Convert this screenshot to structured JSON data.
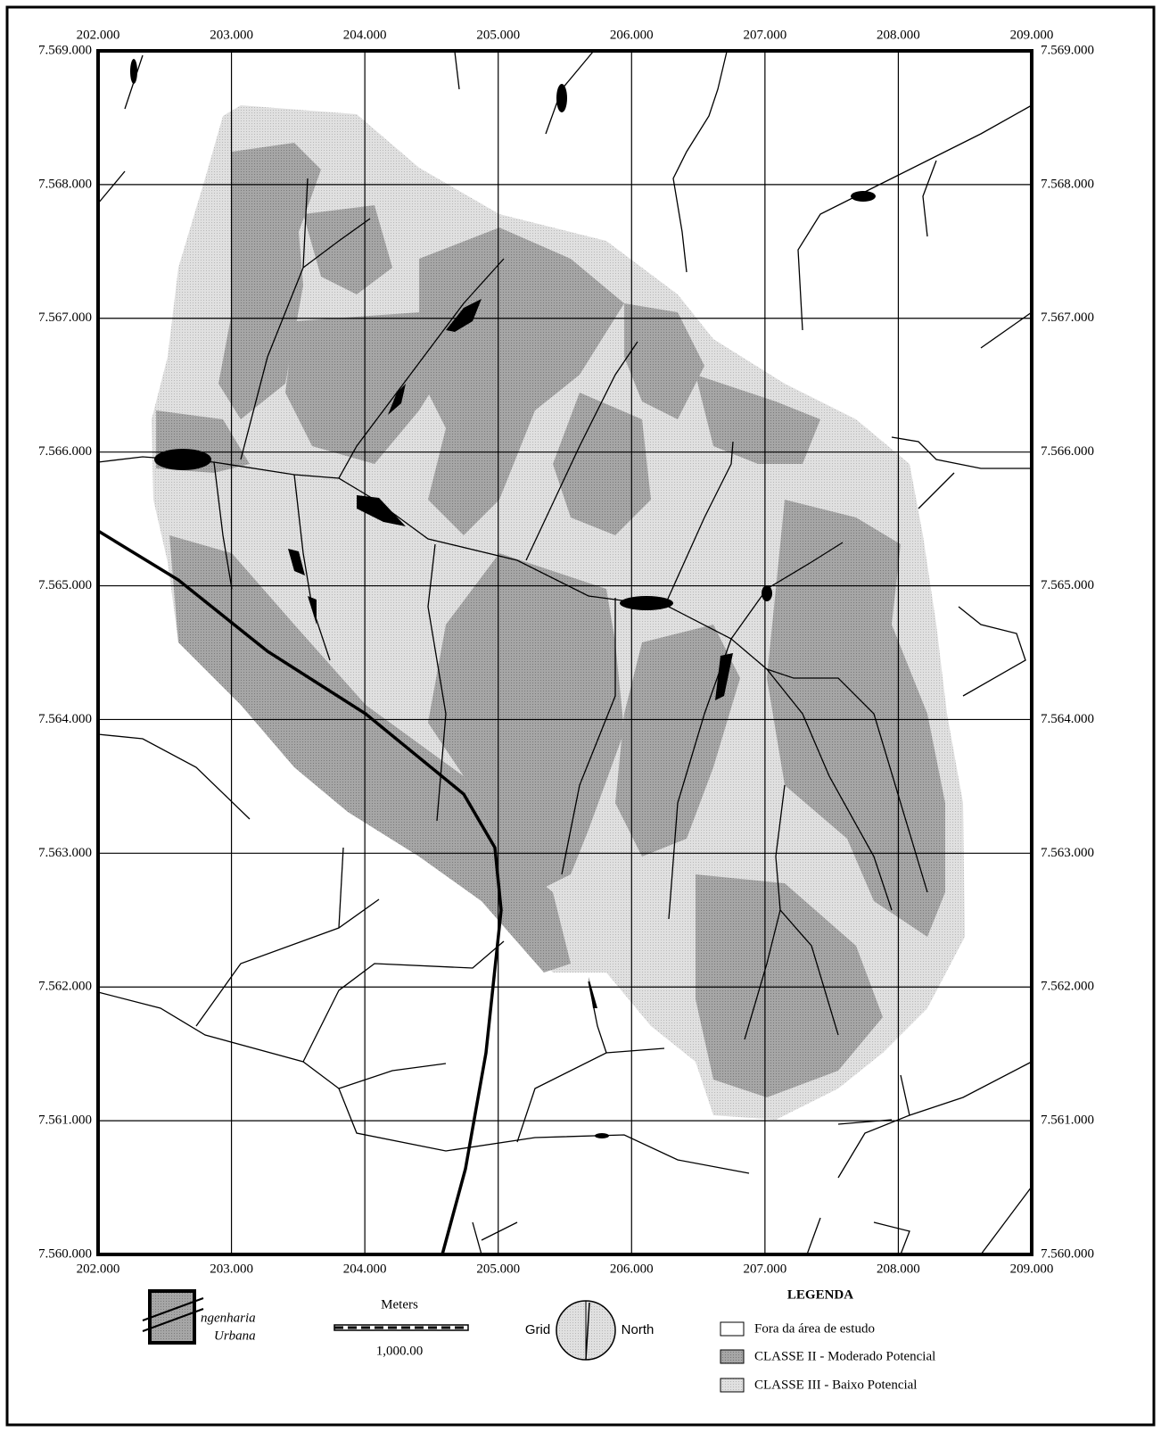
{
  "map": {
    "xlim": [
      202000,
      209000
    ],
    "ylim": [
      7560000,
      7569000
    ],
    "xticks": [
      {
        "value": 202000,
        "label": "202.000"
      },
      {
        "value": 203000,
        "label": "203.000"
      },
      {
        "value": 204000,
        "label": "204.000"
      },
      {
        "value": 205000,
        "label": "205.000"
      },
      {
        "value": 206000,
        "label": "206.000"
      },
      {
        "value": 207000,
        "label": "207.000"
      },
      {
        "value": 208000,
        "label": "208.000"
      },
      {
        "value": 209000,
        "label": "209.000"
      }
    ],
    "yticks": [
      {
        "value": 7560000,
        "label": "7.560.000"
      },
      {
        "value": 7561000,
        "label": "7.561.000"
      },
      {
        "value": 7562000,
        "label": "7.562.000"
      },
      {
        "value": 7563000,
        "label": "7.563.000"
      },
      {
        "value": 7564000,
        "label": "7.564.000"
      },
      {
        "value": 7565000,
        "label": "7.565.000"
      },
      {
        "value": 7566000,
        "label": "7.566.000"
      },
      {
        "value": 7567000,
        "label": "7.567.000"
      },
      {
        "value": 7568000,
        "label": "7.568.000"
      },
      {
        "value": 7569000,
        "label": "7.569.000"
      }
    ]
  },
  "logo": {
    "line1": "ngenharia",
    "line2": "Urbana"
  },
  "scale_bar": {
    "title": "Meters",
    "label": "1,000.00"
  },
  "north_arrow": {
    "left": "Grid",
    "right": "North"
  },
  "legend": {
    "title": "LEGENDA",
    "items": [
      {
        "label": "Fora da área de estudo"
      },
      {
        "label": "CLASSE II - Moderado Potencial"
      },
      {
        "label": "CLASSE III - Baixo Potencial"
      }
    ]
  }
}
